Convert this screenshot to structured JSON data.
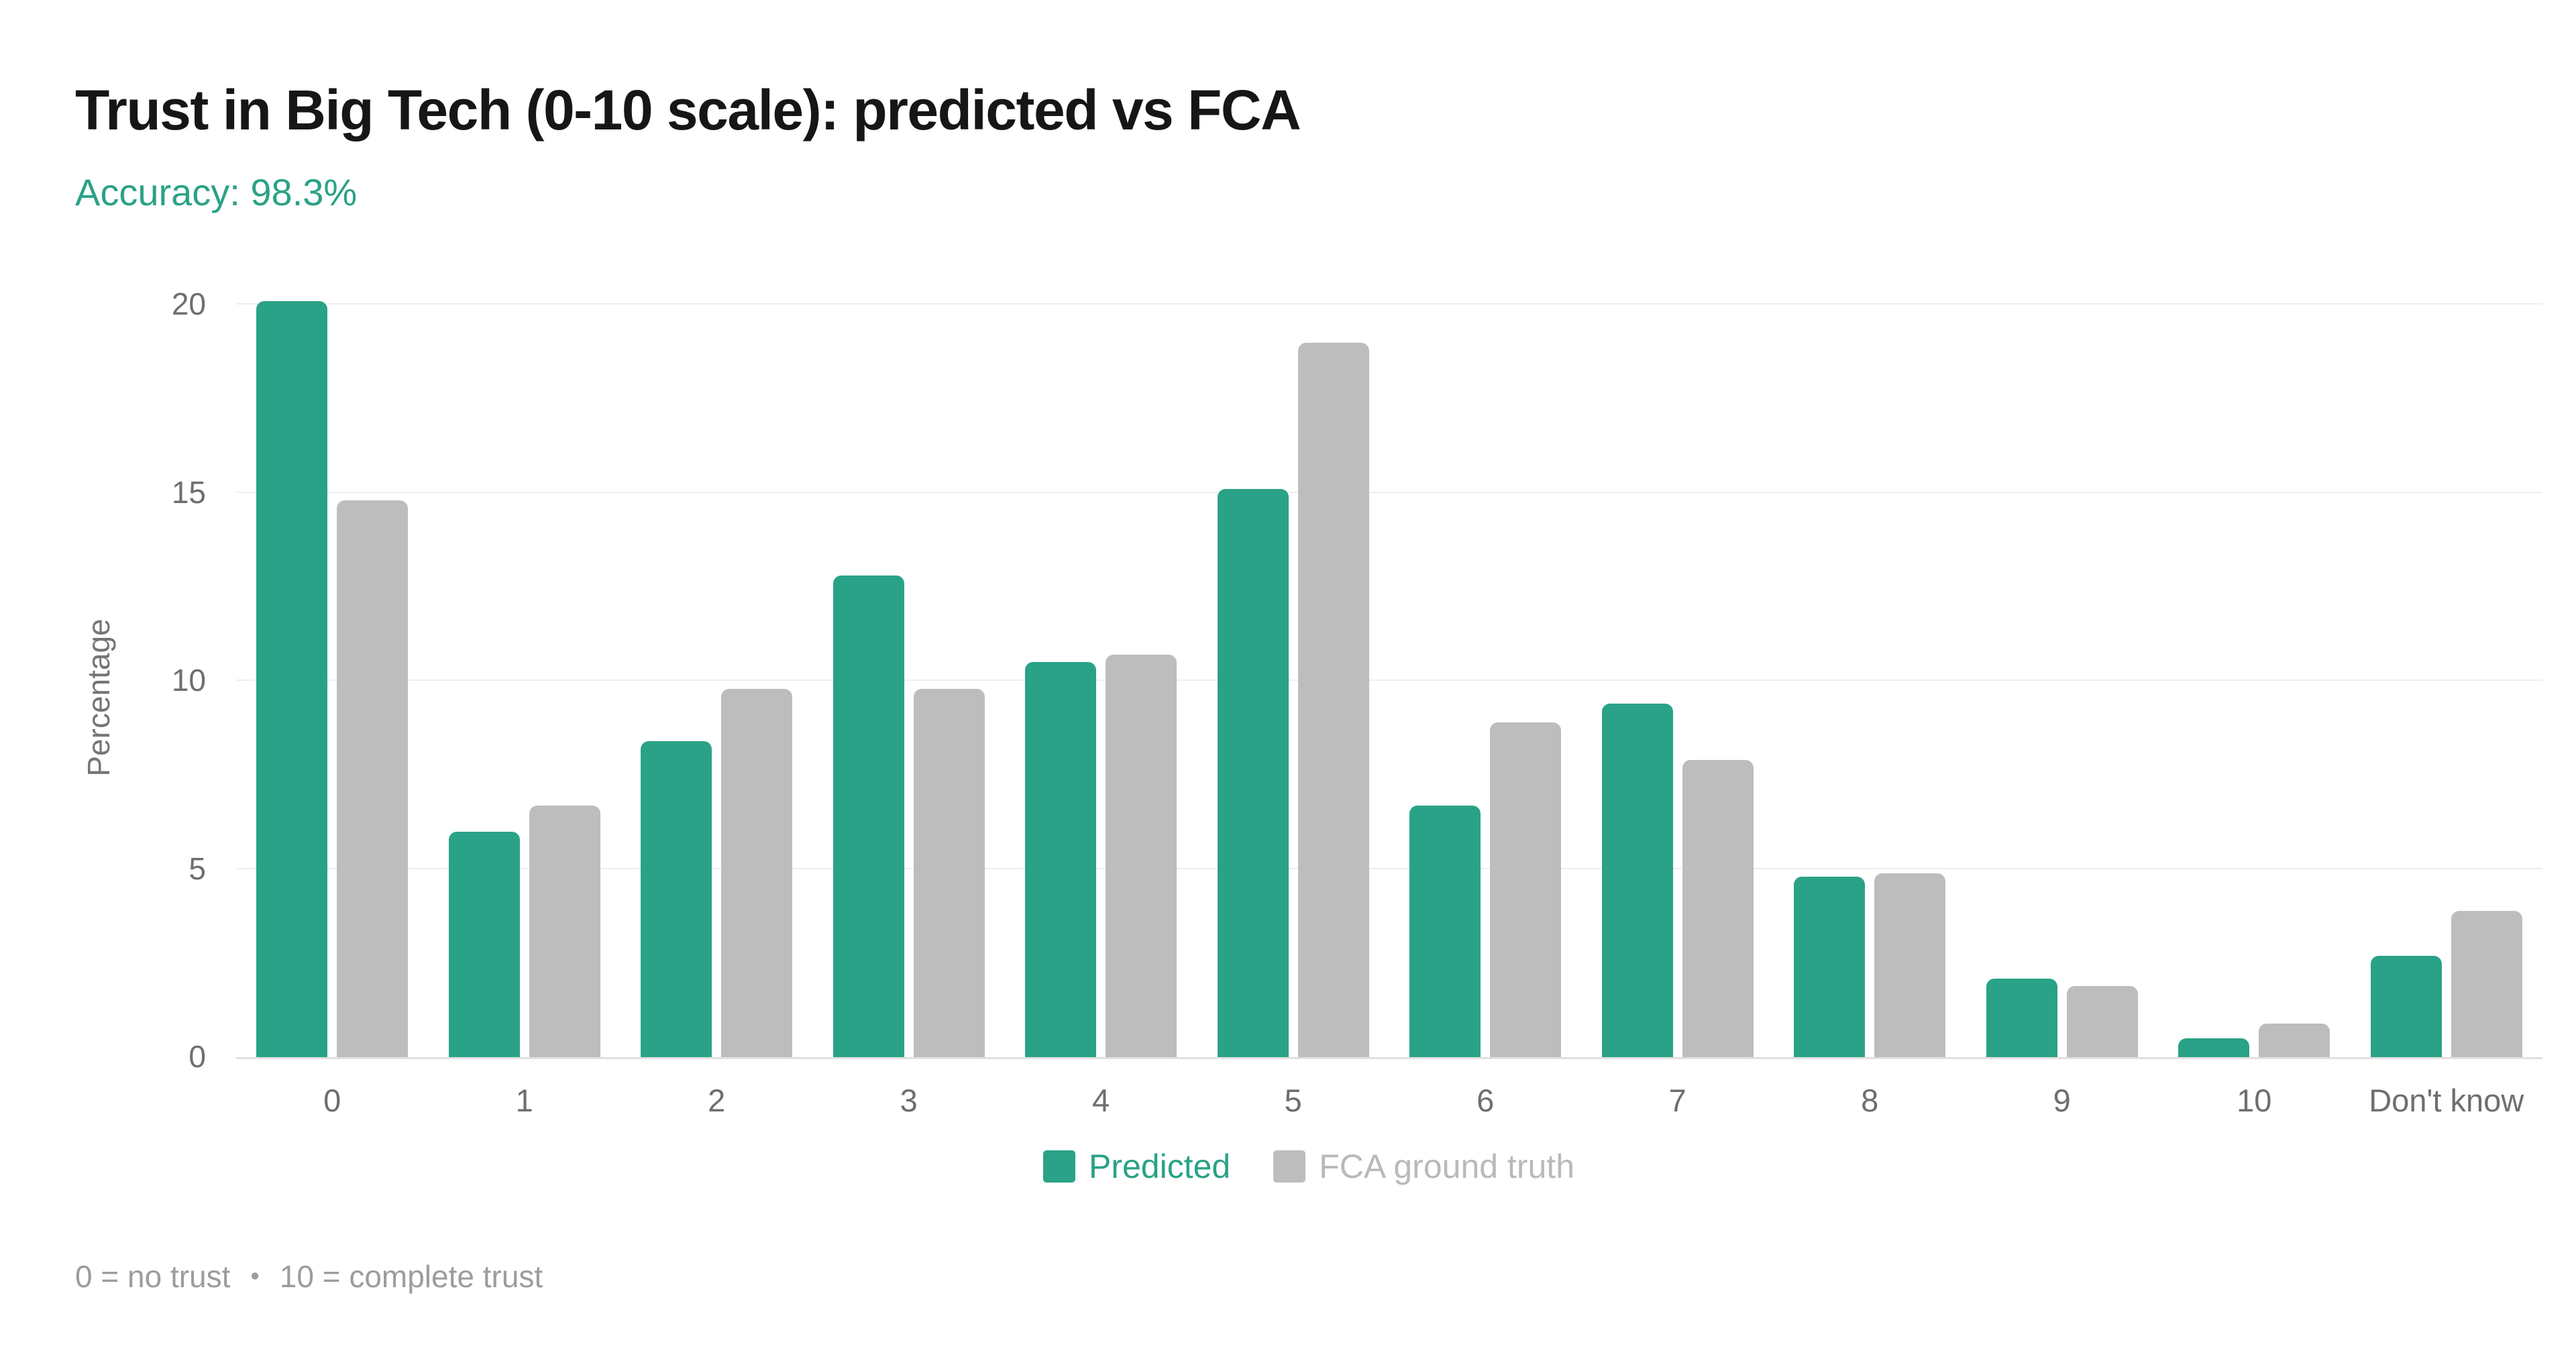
{
  "header": {
    "title": "Trust in Big Tech (0-10 scale): predicted vs FCA",
    "accuracy": "Accuracy: 98.3%"
  },
  "chart_data": {
    "type": "bar",
    "title": "Trust in Big Tech (0-10 scale): predicted vs FCA",
    "subtitle": "Accuracy: 98.3%",
    "categories": [
      "0",
      "1",
      "2",
      "3",
      "4",
      "5",
      "6",
      "7",
      "8",
      "9",
      "10",
      "Don't know"
    ],
    "series": [
      {
        "name": "Predicted",
        "color": "#2aa287",
        "label_color": "#2aa287",
        "values": [
          20.1,
          6.0,
          8.4,
          12.8,
          10.5,
          15.1,
          6.7,
          9.4,
          4.8,
          2.1,
          0.5,
          2.7
        ]
      },
      {
        "name": "FCA ground truth",
        "color": "#bdbdbd",
        "label_color": "#b9b9b9",
        "values": [
          14.8,
          6.7,
          9.8,
          9.8,
          10.7,
          19.0,
          8.9,
          7.9,
          4.9,
          1.9,
          0.9,
          3.9
        ]
      }
    ],
    "xlabel": "",
    "ylabel": "Percentage",
    "yticks": [
      0,
      5,
      10,
      15,
      20
    ],
    "ylim": [
      0,
      20
    ],
    "grid": true,
    "legend_position": "bottom"
  },
  "footer": {
    "note_left": "0 = no trust",
    "separator": "•",
    "note_right": "10 = complete trust"
  },
  "colors": {
    "title_text": "#161616",
    "accent_green": "#2aa287",
    "bar_gray": "#bdbdbd",
    "axis_text": "#6e6e6e",
    "gridline": "#efefef",
    "baseline": "#e0e0e0",
    "footnote_text": "#9c9c9c"
  }
}
